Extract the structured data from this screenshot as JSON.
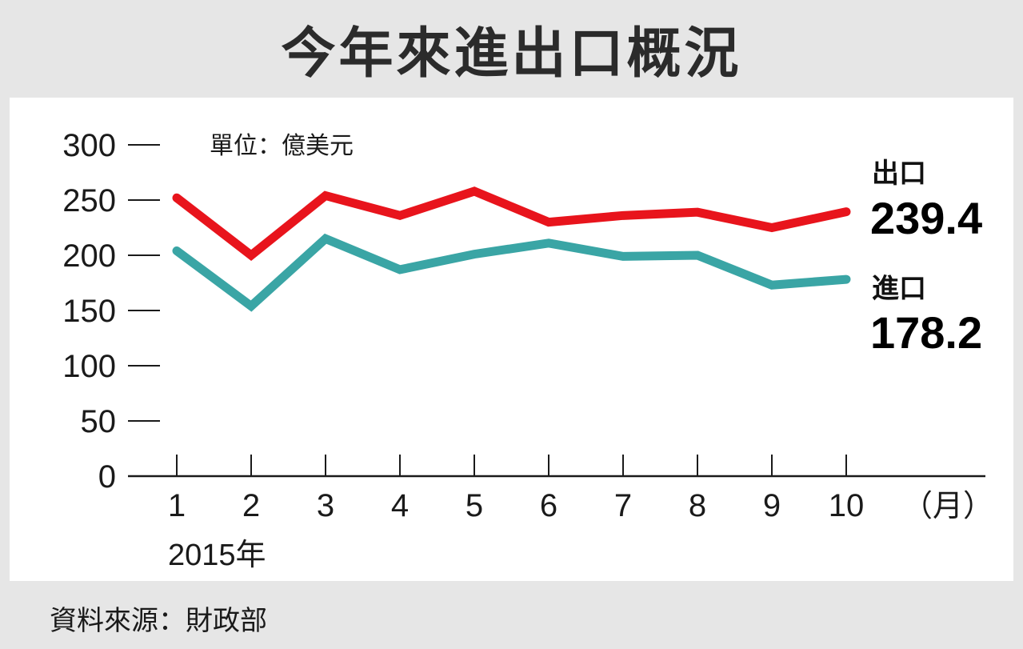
{
  "title": "今年來進出口概況",
  "source": "資料來源：財政部",
  "chart_data": {
    "type": "line",
    "unit_label": "單位：億美元",
    "x": [
      "1",
      "2",
      "3",
      "4",
      "5",
      "6",
      "7",
      "8",
      "9",
      "10"
    ],
    "x_unit": "（月）",
    "year_label": "2015年",
    "yticks": [
      "300",
      "250",
      "200",
      "150",
      "100",
      "50",
      "0"
    ],
    "ylim": [
      0,
      300
    ],
    "series": [
      {
        "name": "出口",
        "color": "#e8141c",
        "values": [
          252,
          200,
          254,
          236,
          258,
          230,
          236,
          239,
          225,
          239.4
        ],
        "end_value_label": "239.4"
      },
      {
        "name": "進口",
        "color": "#3aa5a5",
        "values": [
          204,
          154,
          215,
          187,
          201,
          211,
          199,
          200,
          173,
          178.2
        ],
        "end_value_label": "178.2"
      }
    ]
  }
}
